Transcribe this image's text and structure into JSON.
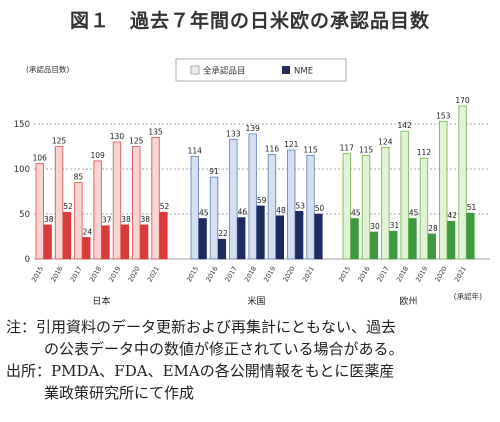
{
  "chart_data": {
    "type": "bar",
    "title": "図１　過去７年間の日米欧の承認品目数",
    "ylabel": "(承認品目数)",
    "xunit_label": "(承認年)",
    "ylim": [
      0,
      170
    ],
    "yticks": [
      0,
      50,
      100,
      150
    ],
    "grid": true,
    "legend_position": "top-center",
    "regions": [
      {
        "name": "日本",
        "years": [
          "2015",
          "2016",
          "2017",
          "2018",
          "2019",
          "2020",
          "2021"
        ],
        "series": [
          {
            "name": "全承認品目",
            "values": [
              106,
              125,
              85,
              109,
              130,
              125,
              135
            ],
            "color": "#f9d4d4",
            "edge": "#e05a5a"
          },
          {
            "name": "NME",
            "values": [
              38,
              52,
              24,
              37,
              38,
              38,
              52
            ],
            "color": "#d93a3a",
            "edge": "#d93a3a"
          }
        ]
      },
      {
        "name": "米国",
        "years": [
          "2015",
          "2016",
          "2017",
          "2018",
          "2019",
          "2020",
          "2021"
        ],
        "series": [
          {
            "name": "全承認品目",
            "values": [
              114,
              91,
              133,
              139,
              116,
              121,
              115
            ],
            "color": "#d5dff0",
            "edge": "#6c86c0"
          },
          {
            "name": "NME",
            "values": [
              45,
              22,
              46,
              59,
              48,
              53,
              50
            ],
            "color": "#1f2a5e",
            "edge": "#1f2a5e"
          }
        ]
      },
      {
        "name": "欧州",
        "years": [
          "2015",
          "2016",
          "2017",
          "2018",
          "2019",
          "2020",
          "2021"
        ],
        "series": [
          {
            "name": "全承認品目",
            "values": [
              117,
              115,
              124,
              142,
              112,
              153,
              170
            ],
            "color": "#e3f1d8",
            "edge": "#7cbb5a"
          },
          {
            "name": "NME",
            "values": [
              45,
              30,
              31,
              45,
              28,
              42,
              51
            ],
            "color": "#3f9a3f",
            "edge": "#3f9a3f"
          }
        ]
      }
    ]
  },
  "legend": {
    "all_label": "全承認品目",
    "nme_label": "NME"
  },
  "notes": {
    "note_line1": "注：引用資料のデータ更新および再集計にともない、過去",
    "note_line2": "の公表データ中の数値が修正されている場合がある。",
    "source_line1": "出所：PMDA、FDA、EMAの各公開情報をもとに医薬産",
    "source_line2": "業政策研究所にて作成"
  }
}
